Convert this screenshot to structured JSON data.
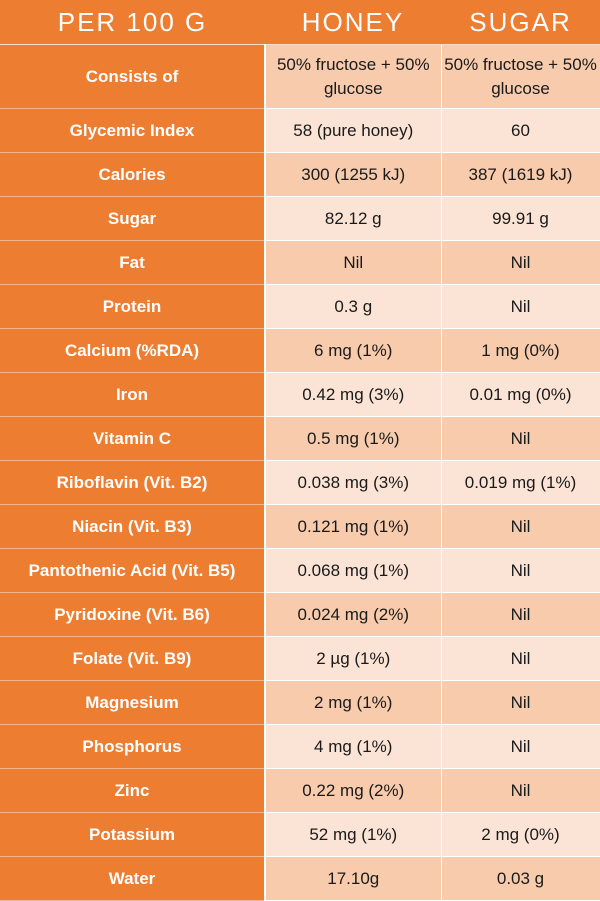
{
  "header": {
    "col1": "PER 100 G",
    "col2": "HONEY",
    "col3": "SUGAR"
  },
  "colors": {
    "header_bg": "#ED7D31",
    "label_bg": "#ED7D31",
    "row_dark": "#F7CBAC",
    "row_light": "#FBE4D5"
  },
  "rows": [
    {
      "label": "Consists of",
      "honey": "50% fructose + 50% glucose",
      "sugar": "50% fructose + 50% glucose"
    },
    {
      "label": "Glycemic Index",
      "honey": "58 (pure honey)",
      "sugar": "60"
    },
    {
      "label": "Calories",
      "honey": "300 (1255 kJ)",
      "sugar": "387 (1619 kJ)"
    },
    {
      "label": "Sugar",
      "honey": "82.12 g",
      "sugar": "99.91 g"
    },
    {
      "label": "Fat",
      "honey": "Nil",
      "sugar": "Nil"
    },
    {
      "label": "Protein",
      "honey": "0.3 g",
      "sugar": "Nil"
    },
    {
      "label": "Calcium (%RDA)",
      "honey": "6 mg (1%)",
      "sugar": "1 mg (0%)"
    },
    {
      "label": "Iron",
      "honey": "0.42 mg (3%)",
      "sugar": "0.01 mg (0%)"
    },
    {
      "label": "Vitamin C",
      "honey": "0.5 mg (1%)",
      "sugar": "Nil"
    },
    {
      "label": "Riboflavin (Vit. B2)",
      "honey": "0.038 mg (3%)",
      "sugar": "0.019 mg (1%)"
    },
    {
      "label": "Niacin (Vit. B3)",
      "honey": "0.121 mg (1%)",
      "sugar": "Nil"
    },
    {
      "label": "Pantothenic Acid (Vit. B5)",
      "honey": "0.068 mg (1%)",
      "sugar": "Nil"
    },
    {
      "label": "Pyridoxine (Vit. B6)",
      "honey": "0.024 mg (2%)",
      "sugar": "Nil"
    },
    {
      "label": "Folate (Vit. B9)",
      "honey": "2 µg (1%)",
      "sugar": "Nil"
    },
    {
      "label": "Magnesium",
      "honey": "2 mg (1%)",
      "sugar": "Nil"
    },
    {
      "label": "Phosphorus",
      "honey": "4 mg (1%)",
      "sugar": "Nil"
    },
    {
      "label": "Zinc",
      "honey": "0.22 mg (2%)",
      "sugar": "Nil"
    },
    {
      "label": "Potassium",
      "honey": "52 mg (1%)",
      "sugar": "2 mg (0%)"
    },
    {
      "label": "Water",
      "honey": "17.10g",
      "sugar": "0.03 g"
    }
  ]
}
